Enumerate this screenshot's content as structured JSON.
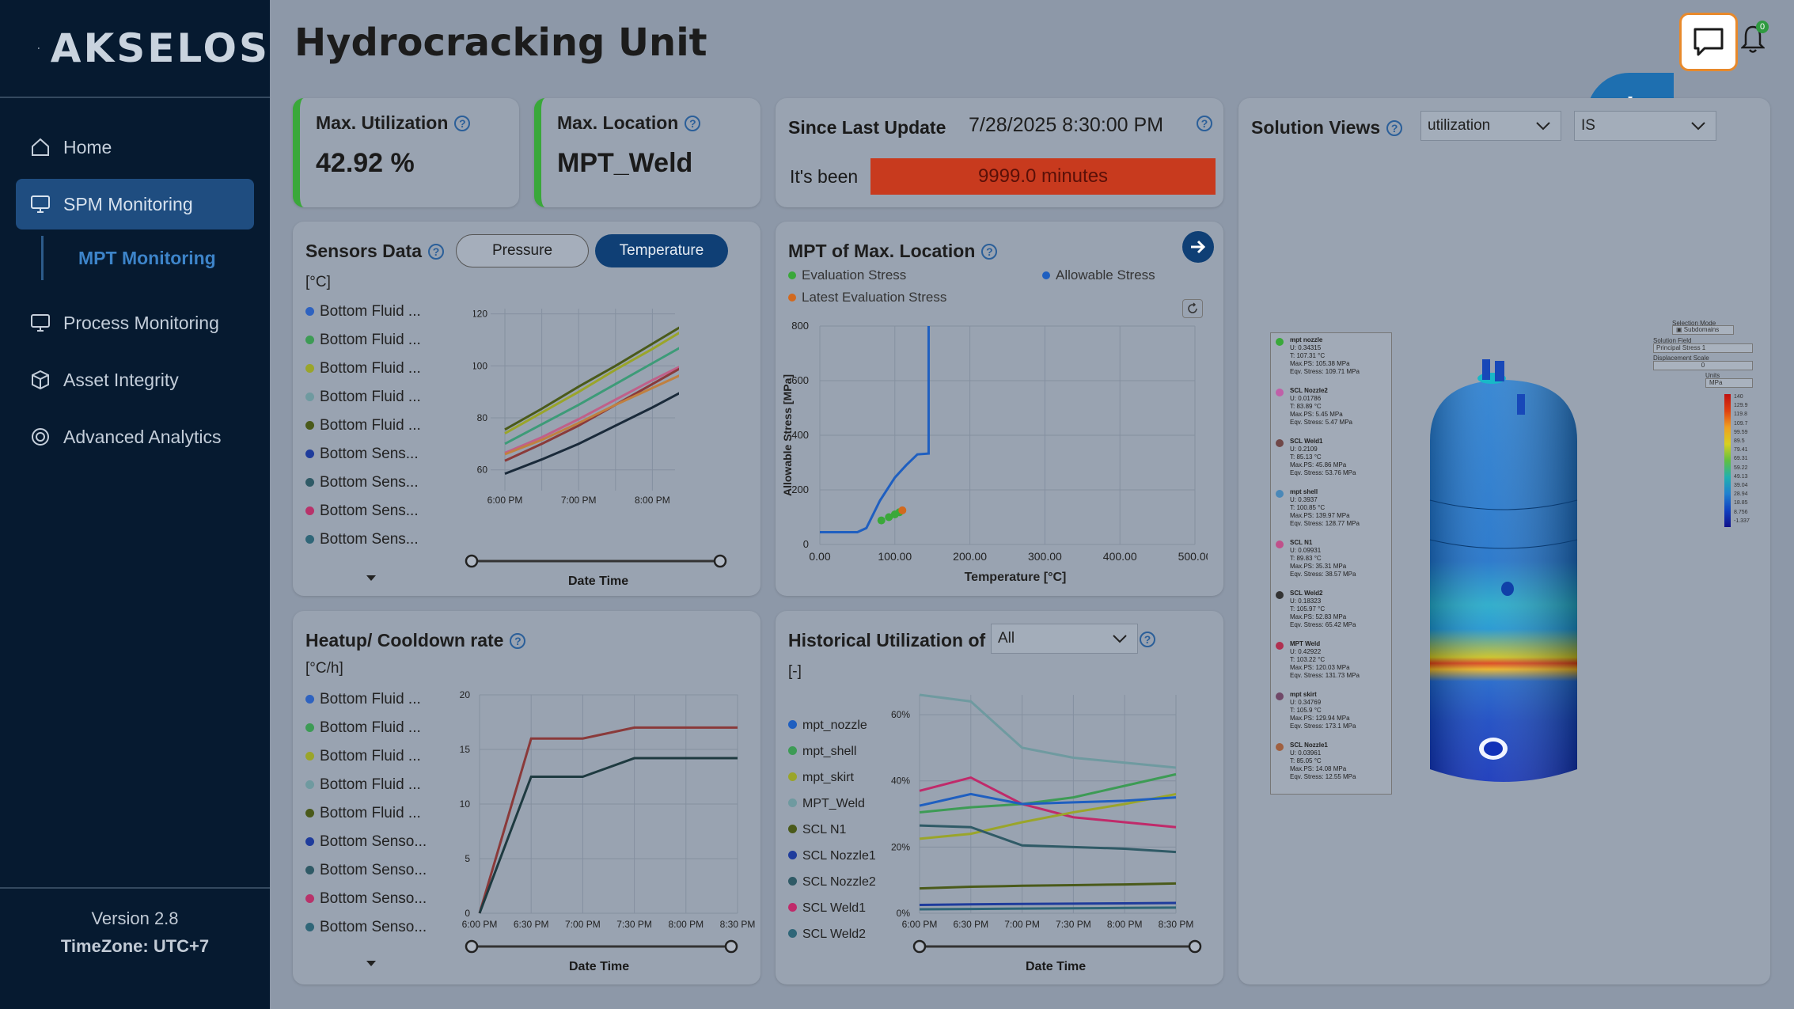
{
  "app": {
    "brand": "AKSELOS",
    "title": "Hydrocracking Unit",
    "version": "Version 2.8",
    "timezone": "TimeZone: UTC+7",
    "notification_count": "0",
    "fab_label": "*"
  },
  "nav": {
    "home": "Home",
    "spm": "SPM Monitoring",
    "mpt": "MPT Monitoring",
    "process": "Process Monitoring",
    "asset": "Asset Integrity",
    "advanced": "Advanced Analytics"
  },
  "kpi": {
    "util_label": "Max. Utilization",
    "util_value": "42.92 %",
    "loc_label": "Max. Location",
    "loc_value": "MPT_Weld",
    "since_label": "Since Last Update",
    "since_value": "7/28/2025 8:30:00 PM",
    "been_label": "It's been",
    "been_value": "9999.0 minutes"
  },
  "colors": {
    "green": "#3aa83a",
    "blue": "#1f4d80",
    "red": "#c83a1e"
  },
  "sensors": {
    "title": "Sensors Data",
    "unit": "[°C]",
    "btn_pressure": "Pressure",
    "btn_temperature": "Temperature",
    "xlabel": "Date Time",
    "legend": [
      "Bottom Fluid ...",
      "Bottom Fluid ...",
      "Bottom Fluid ...",
      "Bottom Fluid ...",
      "Bottom Fluid ...",
      "Bottom Sens...",
      "Bottom Sens...",
      "Bottom Sens...",
      "Bottom Sens..."
    ],
    "legend_colors": [
      "#2e62c0",
      "#3d9b55",
      "#9aa52a",
      "#6f9aa0",
      "#4a5a1a",
      "#1f3c9c",
      "#2f5a66",
      "#b8326a",
      "#2f6678"
    ]
  },
  "mpt": {
    "title": "MPT of Max. Location",
    "legend_eval": "Evaluation Stress",
    "legend_allow": "Allowable Stress",
    "legend_latest": "Latest Evaluation Stress",
    "ylabel": "Allowable Stress [MPa]",
    "xlabel": "Temperature [°C]"
  },
  "heatup": {
    "title": "Heatup/ Cooldown rate",
    "unit": "[°C/h]",
    "xlabel": "Date Time",
    "legend": [
      "Bottom Fluid ...",
      "Bottom Fluid ...",
      "Bottom Fluid ...",
      "Bottom Fluid ...",
      "Bottom Fluid ...",
      "Bottom Senso...",
      "Bottom Senso...",
      "Bottom Senso...",
      "Bottom Senso..."
    ],
    "legend_colors": [
      "#2e62c0",
      "#3d9b55",
      "#9aa52a",
      "#6f9aa0",
      "#4a5a1a",
      "#1f3c9c",
      "#2f5a66",
      "#b8326a",
      "#2f6678"
    ]
  },
  "hist": {
    "title": "Historical Utilization of",
    "select": "All",
    "unit": "[-]",
    "xlabel": "Date Time",
    "legend": [
      "mpt_nozzle",
      "mpt_shell",
      "mpt_skirt",
      "MPT_Weld",
      "SCL N1",
      "SCL Nozzle1",
      "SCL Nozzle2",
      "SCL Weld1",
      "SCL Weld2"
    ],
    "legend_colors": [
      "#1f5fc0",
      "#3d9b55",
      "#9aa52a",
      "#6f9aa0",
      "#4a5a1a",
      "#1f3c9c",
      "#2f5a66",
      "#c02a6a",
      "#2f6678"
    ]
  },
  "solution": {
    "title": "Solution Views",
    "select1": "utilization",
    "select2": "IS",
    "side_labels": {
      "selection_mode": "Selection Mode",
      "subdomains": "Subdomains",
      "solution_field": "Solution Field",
      "principal": "Principal Stress 1",
      "displacement": "Displacement Scale",
      "disp_value": "0",
      "units": "Units",
      "mpa": "MPa"
    },
    "colorbar_ticks": [
      "140",
      "129.9",
      "119.8",
      "109.7",
      "99.59",
      "89.5",
      "79.41",
      "69.31",
      "59.22",
      "49.13",
      "39.04",
      "28.94",
      "18.85",
      "8.756",
      "-1.337"
    ],
    "points": [
      {
        "name": "mpt nozzle",
        "u": "U: 0.34315",
        "t": "T: 107.31 °C",
        "ps": "Max.PS: 105.38 MPa",
        "eq": "Eqv. Stress: 109.71 MPa",
        "color": "#3aa83a"
      },
      {
        "name": "SCL Nozzle2",
        "u": "U: 0.01786",
        "t": "T: 83.89 °C",
        "ps": "Max.PS: 5.45 MPa",
        "eq": "Eqv. Stress: 5.47 MPa",
        "color": "#c060a8"
      },
      {
        "name": "SCL Weld1",
        "u": "U: 0.2109",
        "t": "T: 85.13 °C",
        "ps": "Max.PS: 45.86 MPa",
        "eq": "Eqv. Stress: 53.76 MPa",
        "color": "#704848"
      },
      {
        "name": "mpt shell",
        "u": "U: 0.3937",
        "t": "T: 100.85 °C",
        "ps": "Max.PS: 139.97 MPa",
        "eq": "Eqv. Stress: 128.77 MPa",
        "color": "#4a88b8"
      },
      {
        "name": "SCL N1",
        "u": "U: 0.09931",
        "t": "T: 89.83 °C",
        "ps": "Max.PS: 35.31 MPa",
        "eq": "Eqv. Stress: 38.57 MPa",
        "color": "#c0508a"
      },
      {
        "name": "SCL Weld2",
        "u": "U: 0.18323",
        "t": "T: 105.97 °C",
        "ps": "Max.PS: 52.83 MPa",
        "eq": "Eqv. Stress: 65.42 MPa",
        "color": "#333333"
      },
      {
        "name": "MPT Weld",
        "u": "U: 0.42922",
        "t": "T: 103.22 °C",
        "ps": "Max.PS: 120.03 MPa",
        "eq": "Eqv. Stress: 131.73 MPa",
        "color": "#b03050"
      },
      {
        "name": "mpt skirt",
        "u": "U: 0.34769",
        "t": "T: 105.9 °C",
        "ps": "Max.PS: 129.94 MPa",
        "eq": "Eqv. Stress: 173.1 MPa",
        "color": "#704868"
      },
      {
        "name": "SCL Nozzle1",
        "u": "U: 0.03961",
        "t": "T: 85.05 °C",
        "ps": "Max.PS: 14.08 MPa",
        "eq": "Eqv. Stress: 12.55 MPa",
        "color": "#a06040"
      }
    ]
  },
  "chart_data": [
    {
      "type": "line",
      "title": "Sensors Data",
      "xlabel": "Date Time",
      "ylabel": "[°C]",
      "x": [
        "6:00 PM",
        "6:30 PM",
        "7:00 PM",
        "7:30 PM",
        "8:00 PM",
        "8:30 PM"
      ],
      "xticks": [
        "6:00 PM",
        "7:00 PM",
        "8:00 PM"
      ],
      "yticks": [
        60,
        80,
        100,
        120
      ],
      "ylim": [
        52,
        122
      ],
      "series": [
        {
          "name": "olive",
          "color": "#4a5a1a",
          "values": [
            75.5,
            83.5,
            92,
            100,
            108.5,
            117
          ]
        },
        {
          "name": "yellow-green",
          "color": "#9aa52a",
          "values": [
            74,
            82,
            90,
            98.5,
            106.5,
            115
          ]
        },
        {
          "name": "teal",
          "color": "#3d9b78",
          "values": [
            70,
            77.5,
            85,
            93,
            101,
            109
          ]
        },
        {
          "name": "pink",
          "color": "#c0608a",
          "values": [
            66.5,
            72.5,
            79.5,
            87,
            94.5,
            101.5
          ]
        },
        {
          "name": "brown",
          "color": "#8a3a3a",
          "values": [
            63.5,
            70,
            77,
            85,
            93,
            101
          ]
        },
        {
          "name": "orange",
          "color": "#c08040",
          "values": [
            66,
            71.5,
            78,
            85,
            91.5,
            98
          ]
        },
        {
          "name": "dark",
          "color": "#1a2a3a",
          "values": [
            58.5,
            64,
            70,
            77,
            84,
            91.5
          ]
        }
      ]
    },
    {
      "type": "scatter",
      "title": "MPT of Max. Location",
      "xlabel": "Temperature [°C]",
      "ylabel": "Allowable Stress [MPa]",
      "xticks": [
        "0.00",
        "100.00",
        "200.00",
        "300.00",
        "400.00",
        "500.00"
      ],
      "yticks": [
        0,
        200,
        400,
        600,
        800
      ],
      "xlim": [
        0,
        500
      ],
      "ylim": [
        0,
        800
      ],
      "allowable": [
        [
          0,
          45
        ],
        [
          50,
          45
        ],
        [
          62,
          60
        ],
        [
          80,
          160
        ],
        [
          100,
          245
        ],
        [
          115,
          290
        ],
        [
          130,
          330
        ],
        [
          145,
          333
        ],
        [
          145,
          800
        ]
      ],
      "evaluation": [
        [
          82,
          88
        ],
        [
          92,
          100
        ],
        [
          100,
          110
        ],
        [
          106,
          118
        ]
      ],
      "latest": [
        [
          110,
          125
        ]
      ]
    },
    {
      "type": "line",
      "title": "Heatup/ Cooldown rate",
      "xlabel": "Date Time",
      "ylabel": "[°C/h]",
      "x": [
        "6:00 PM",
        "6:30 PM",
        "7:00 PM",
        "7:30 PM",
        "8:00 PM",
        "8:30 PM"
      ],
      "yticks": [
        0,
        5,
        10,
        15,
        20
      ],
      "ylim": [
        0,
        20
      ],
      "series": [
        {
          "name": "brown",
          "color": "#8a3a3a",
          "values": [
            0,
            16,
            16,
            17,
            17,
            17
          ]
        },
        {
          "name": "dark",
          "color": "#1e3a40",
          "values": [
            0,
            12.5,
            12.5,
            14.2,
            14.2,
            14.2
          ]
        }
      ]
    },
    {
      "type": "line",
      "title": "Historical Utilization of",
      "xlabel": "Date Time",
      "ylabel": "[-]",
      "x": [
        "6:00 PM",
        "6:30 PM",
        "7:00 PM",
        "7:30 PM",
        "8:00 PM",
        "8:30 PM"
      ],
      "yticks": [
        "0%",
        "20%",
        "40%",
        "60%"
      ],
      "ylim": [
        0,
        66
      ],
      "series": [
        {
          "name": "MPT_Weld",
          "color": "#6f9aa0",
          "values": [
            66,
            64,
            50,
            47,
            45.5,
            44
          ]
        },
        {
          "name": "SCL Weld1",
          "color": "#c02a6a",
          "values": [
            37,
            41,
            33,
            29,
            27.5,
            26
          ]
        },
        {
          "name": "mpt_shell",
          "color": "#3d9b55",
          "values": [
            30.5,
            32,
            33,
            35,
            38.5,
            42
          ]
        },
        {
          "name": "mpt_skirt",
          "color": "#9aa52a",
          "values": [
            22.5,
            24,
            27.5,
            30.5,
            33,
            36
          ]
        },
        {
          "name": "mpt_nozzle",
          "color": "#1f5fc0",
          "values": [
            32.5,
            36,
            33,
            33.5,
            34,
            35
          ]
        },
        {
          "name": "SCL Nozzle2",
          "color": "#2f5a66",
          "values": [
            26.5,
            26,
            20.5,
            20,
            19.5,
            18.5
          ]
        },
        {
          "name": "SCL N1",
          "color": "#4a5a1a",
          "values": [
            7.5,
            8,
            8.3,
            8.5,
            8.7,
            9
          ]
        },
        {
          "name": "SCL Nozzle1",
          "color": "#1f3c9c",
          "values": [
            2.5,
            2.7,
            2.8,
            2.9,
            3,
            3.1
          ]
        },
        {
          "name": "SCL Weld2",
          "color": "#2f6678",
          "values": [
            1.2,
            1.3,
            1.4,
            1.5,
            1.6,
            1.7
          ]
        }
      ]
    }
  ]
}
